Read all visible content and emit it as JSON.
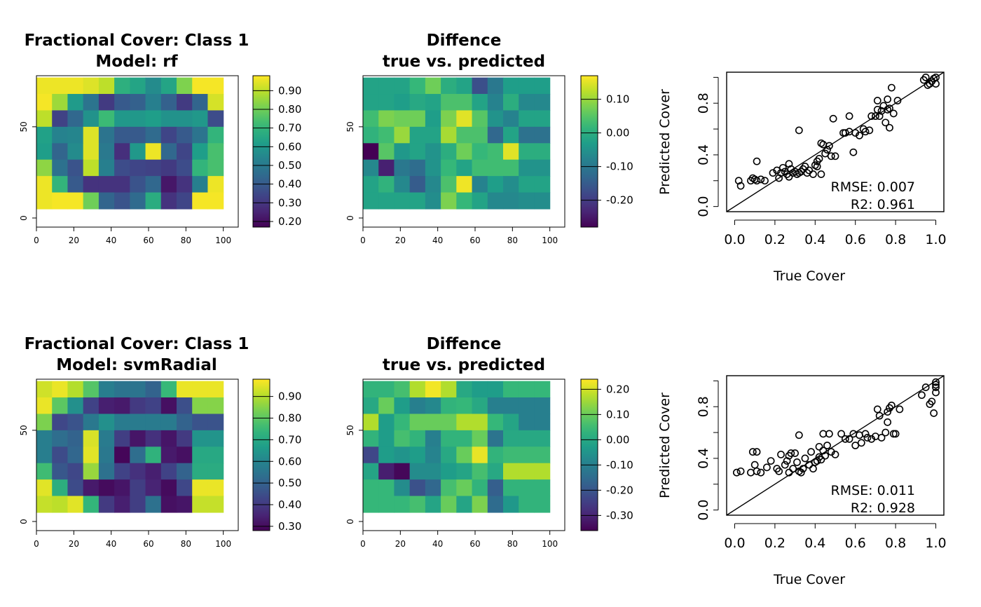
{
  "chart_data": [
    {
      "type": "heatmap",
      "title_lines": [
        "Fractional Cover: Class 1",
        "Model: rf"
      ],
      "x_ticks": [
        "0",
        "20",
        "40",
        "60",
        "80",
        "100"
      ],
      "y_ticks": [
        "0",
        "50"
      ],
      "xlim": [
        0,
        108
      ],
      "ylim": [
        -5,
        78
      ],
      "extent": [
        0,
        100,
        5,
        77
      ],
      "zlim": [
        0.17,
        0.98
      ],
      "colorbar_ticks": [
        0.2,
        0.3,
        0.4,
        0.5,
        0.6,
        0.7,
        0.8,
        0.9
      ],
      "colorbar_labels": [
        "0.20",
        "0.30",
        "0.40",
        "0.50",
        "0.60",
        "0.70",
        "0.80",
        "0.90"
      ],
      "grid": [
        [
          0.96,
          0.96,
          0.96,
          0.94,
          0.9,
          0.68,
          0.64,
          0.56,
          0.64,
          0.82,
          0.97,
          0.97
        ],
        [
          0.97,
          0.86,
          0.61,
          0.48,
          0.31,
          0.4,
          0.42,
          0.52,
          0.42,
          0.31,
          0.43,
          0.93
        ],
        [
          0.9,
          0.33,
          0.44,
          0.58,
          0.72,
          0.6,
          0.6,
          0.62,
          0.58,
          0.58,
          0.6,
          0.36
        ],
        [
          0.63,
          0.53,
          0.54,
          0.94,
          0.48,
          0.4,
          0.4,
          0.45,
          0.34,
          0.4,
          0.48,
          0.7
        ],
        [
          0.62,
          0.43,
          0.56,
          0.94,
          0.5,
          0.28,
          0.6,
          0.96,
          0.44,
          0.34,
          0.62,
          0.74
        ],
        [
          0.84,
          0.47,
          0.38,
          0.9,
          0.52,
          0.36,
          0.34,
          0.33,
          0.31,
          0.36,
          0.7,
          0.74
        ],
        [
          0.96,
          0.7,
          0.4,
          0.29,
          0.29,
          0.29,
          0.38,
          0.44,
          0.22,
          0.29,
          0.52,
          0.96
        ],
        [
          0.96,
          0.97,
          0.97,
          0.8,
          0.43,
          0.38,
          0.45,
          0.67,
          0.29,
          0.34,
          0.97,
          0.97
        ]
      ]
    },
    {
      "type": "heatmap",
      "title_lines": [
        "Diffence",
        "true vs. predicted"
      ],
      "x_ticks": [
        "0",
        "20",
        "40",
        "60",
        "80",
        "100"
      ],
      "y_ticks": [
        "0",
        "50"
      ],
      "xlim": [
        0,
        108
      ],
      "ylim": [
        -5,
        78
      ],
      "extent": [
        0,
        100,
        5,
        77
      ],
      "zlim": [
        -0.28,
        0.17
      ],
      "colorbar_ticks": [
        -0.2,
        -0.1,
        0.0,
        0.1
      ],
      "colorbar_labels": [
        "-0.20",
        "-0.10",
        "0.00",
        "0.10"
      ],
      "grid": [
        [
          -0.02,
          -0.02,
          -0.02,
          0.02,
          0.07,
          0.0,
          -0.02,
          -0.17,
          -0.1,
          -0.03,
          -0.03,
          -0.03
        ],
        [
          -0.02,
          -0.02,
          -0.03,
          -0.01,
          -0.02,
          0.04,
          0.04,
          -0.02,
          -0.08,
          0.0,
          -0.07,
          -0.07
        ],
        [
          0.03,
          0.08,
          0.07,
          0.07,
          -0.03,
          0.08,
          0.15,
          0.05,
          -0.05,
          -0.08,
          -0.02,
          -0.02
        ],
        [
          0.01,
          0.03,
          0.1,
          -0.02,
          -0.02,
          0.11,
          0.04,
          0.04,
          -0.13,
          -0.02,
          -0.11,
          -0.11
        ],
        [
          -0.28,
          0.05,
          -0.04,
          -0.02,
          -0.05,
          0.0,
          0.07,
          0.02,
          0.03,
          0.15,
          0.0,
          0.0
        ],
        [
          -0.07,
          -0.24,
          -0.1,
          -0.12,
          -0.05,
          0.02,
          -0.02,
          0.03,
          0.03,
          0.03,
          -0.05,
          -0.05
        ],
        [
          -0.02,
          0.01,
          -0.07,
          -0.15,
          -0.07,
          0.04,
          0.16,
          -0.08,
          -0.03,
          -0.06,
          -0.02,
          -0.02
        ],
        [
          -0.02,
          -0.02,
          -0.02,
          -0.02,
          -0.06,
          0.08,
          0.02,
          -0.02,
          -0.07,
          -0.07,
          -0.06,
          -0.06
        ]
      ]
    },
    {
      "type": "scatter",
      "xlabel": "True Cover",
      "ylabel": "Predicted Cover",
      "x_ticks": [
        "0.0",
        "0.2",
        "0.4",
        "0.6",
        "0.8",
        "1.0"
      ],
      "y_ticks": [
        "0.0",
        "0.4",
        "0.8"
      ],
      "xlim": [
        -0.04,
        1.04
      ],
      "ylim": [
        -0.04,
        1.04
      ],
      "reference_line": "y = x",
      "annotation_lines": [
        "RMSE: 0.007",
        "R2: 0.961"
      ],
      "points": [
        [
          0.02,
          0.2
        ],
        [
          0.03,
          0.16
        ],
        [
          0.08,
          0.2
        ],
        [
          0.09,
          0.22
        ],
        [
          0.1,
          0.21
        ],
        [
          0.11,
          0.2
        ],
        [
          0.11,
          0.35
        ],
        [
          0.13,
          0.21
        ],
        [
          0.15,
          0.2
        ],
        [
          0.19,
          0.26
        ],
        [
          0.21,
          0.28
        ],
        [
          0.22,
          0.22
        ],
        [
          0.23,
          0.26
        ],
        [
          0.24,
          0.3
        ],
        [
          0.25,
          0.27
        ],
        [
          0.26,
          0.25
        ],
        [
          0.27,
          0.23
        ],
        [
          0.27,
          0.33
        ],
        [
          0.28,
          0.29
        ],
        [
          0.29,
          0.26
        ],
        [
          0.3,
          0.27
        ],
        [
          0.31,
          0.25
        ],
        [
          0.32,
          0.59
        ],
        [
          0.32,
          0.26
        ],
        [
          0.33,
          0.27
        ],
        [
          0.34,
          0.29
        ],
        [
          0.35,
          0.31
        ],
        [
          0.36,
          0.26
        ],
        [
          0.37,
          0.28
        ],
        [
          0.39,
          0.25
        ],
        [
          0.4,
          0.32
        ],
        [
          0.41,
          0.31
        ],
        [
          0.41,
          0.35
        ],
        [
          0.42,
          0.37
        ],
        [
          0.43,
          0.25
        ],
        [
          0.43,
          0.49
        ],
        [
          0.44,
          0.48
        ],
        [
          0.45,
          0.41
        ],
        [
          0.46,
          0.44
        ],
        [
          0.47,
          0.47
        ],
        [
          0.48,
          0.39
        ],
        [
          0.49,
          0.68
        ],
        [
          0.5,
          0.39
        ],
        [
          0.54,
          0.57
        ],
        [
          0.55,
          0.57
        ],
        [
          0.57,
          0.7
        ],
        [
          0.57,
          0.58
        ],
        [
          0.59,
          0.42
        ],
        [
          0.6,
          0.57
        ],
        [
          0.62,
          0.55
        ],
        [
          0.64,
          0.6
        ],
        [
          0.65,
          0.58
        ],
        [
          0.67,
          0.59
        ],
        [
          0.68,
          0.7
        ],
        [
          0.7,
          0.7
        ],
        [
          0.71,
          0.75
        ],
        [
          0.71,
          0.82
        ],
        [
          0.72,
          0.7
        ],
        [
          0.73,
          0.74
        ],
        [
          0.74,
          0.78
        ],
        [
          0.75,
          0.65
        ],
        [
          0.76,
          0.75
        ],
        [
          0.76,
          0.83
        ],
        [
          0.77,
          0.61
        ],
        [
          0.77,
          0.76
        ],
        [
          0.78,
          0.92
        ],
        [
          0.79,
          0.72
        ],
        [
          0.81,
          0.82
        ],
        [
          0.94,
          0.98
        ],
        [
          0.95,
          1.0
        ],
        [
          0.96,
          0.94
        ],
        [
          0.97,
          0.95
        ],
        [
          0.98,
          0.97
        ],
        [
          0.99,
          0.99
        ],
        [
          1.0,
          1.0
        ],
        [
          1.0,
          0.95
        ]
      ]
    },
    {
      "type": "heatmap",
      "title_lines": [
        "Fractional Cover: Class 1",
        "Model: svmRadial"
      ],
      "x_ticks": [
        "0",
        "20",
        "40",
        "60",
        "80",
        "100"
      ],
      "y_ticks": [
        "0",
        "50"
      ],
      "xlim": [
        0,
        108
      ],
      "ylim": [
        -5,
        78
      ],
      "extent": [
        0,
        100,
        5,
        77
      ],
      "zlim": [
        0.28,
        0.98
      ],
      "colorbar_ticks": [
        0.3,
        0.4,
        0.5,
        0.6,
        0.7,
        0.8,
        0.9
      ],
      "colorbar_labels": [
        "0.30",
        "0.40",
        "0.50",
        "0.60",
        "0.70",
        "0.80",
        "0.90"
      ],
      "grid": [
        [
          0.93,
          0.96,
          0.9,
          0.79,
          0.58,
          0.55,
          0.55,
          0.5,
          0.75,
          0.96,
          0.96,
          0.96
        ],
        [
          0.96,
          0.8,
          0.63,
          0.42,
          0.34,
          0.33,
          0.4,
          0.42,
          0.31,
          0.45,
          0.85,
          0.85
        ],
        [
          0.84,
          0.43,
          0.46,
          0.56,
          0.63,
          0.57,
          0.57,
          0.57,
          0.57,
          0.5,
          0.46,
          0.46
        ],
        [
          0.58,
          0.53,
          0.5,
          0.94,
          0.57,
          0.41,
          0.32,
          0.38,
          0.32,
          0.4,
          0.64,
          0.64
        ],
        [
          0.58,
          0.44,
          0.51,
          0.95,
          0.56,
          0.29,
          0.53,
          0.73,
          0.33,
          0.31,
          0.7,
          0.7
        ],
        [
          0.76,
          0.47,
          0.43,
          0.87,
          0.54,
          0.42,
          0.38,
          0.34,
          0.42,
          0.5,
          0.71,
          0.71
        ],
        [
          0.95,
          0.72,
          0.44,
          0.33,
          0.3,
          0.32,
          0.41,
          0.35,
          0.3,
          0.43,
          0.96,
          0.96
        ],
        [
          0.92,
          0.91,
          0.95,
          0.74,
          0.4,
          0.34,
          0.41,
          0.54,
          0.31,
          0.32,
          0.92,
          0.92
        ]
      ]
    },
    {
      "type": "heatmap",
      "title_lines": [
        "Diffence",
        "true vs. predicted"
      ],
      "x_ticks": [
        "0",
        "20",
        "40",
        "60",
        "80",
        "100"
      ],
      "y_ticks": [
        "0",
        "50"
      ],
      "xlim": [
        0,
        108
      ],
      "ylim": [
        -5,
        78
      ],
      "extent": [
        0,
        100,
        5,
        77
      ],
      "zlim": [
        -0.36,
        0.24
      ],
      "colorbar_ticks": [
        -0.3,
        -0.2,
        -0.1,
        0.0,
        0.1,
        0.2
      ],
      "colorbar_labels": [
        "-0.30",
        "-0.20",
        "-0.10",
        "0.00",
        "0.10",
        "0.20"
      ],
      "grid": [
        [
          0.03,
          0.03,
          0.06,
          0.17,
          0.23,
          0.17,
          0.0,
          -0.03,
          -0.03,
          0.04,
          0.04,
          0.04
        ],
        [
          0.0,
          0.1,
          -0.03,
          -0.1,
          -0.08,
          0.03,
          0.04,
          0.0,
          -0.1,
          -0.1,
          -0.1,
          -0.1
        ],
        [
          0.17,
          -0.03,
          0.04,
          0.1,
          0.1,
          0.1,
          0.17,
          0.17,
          0.04,
          -0.01,
          -0.1,
          -0.1
        ],
        [
          0.03,
          -0.03,
          0.06,
          0.03,
          -0.1,
          0.03,
          0.03,
          0.1,
          -0.13,
          0.0,
          0.0,
          0.0
        ],
        [
          -0.23,
          -0.03,
          -0.05,
          -0.03,
          -0.09,
          0.0,
          0.1,
          0.22,
          0.03,
          0.05,
          0.05,
          0.05
        ],
        [
          -0.01,
          -0.31,
          -0.35,
          -0.07,
          -0.07,
          -0.03,
          -0.01,
          0.06,
          0.0,
          0.17,
          0.17,
          0.17
        ],
        [
          0.04,
          0.04,
          -0.07,
          -0.21,
          -0.16,
          0.06,
          0.1,
          0.03,
          -0.18,
          0.03,
          0.03,
          0.03
        ],
        [
          0.04,
          0.04,
          0.04,
          0.06,
          -0.01,
          0.1,
          -0.01,
          0.12,
          -0.15,
          -0.04,
          0.03,
          0.03
        ]
      ]
    },
    {
      "type": "scatter",
      "xlabel": "True Cover",
      "ylabel": "Predicted Cover",
      "x_ticks": [
        "0.0",
        "0.2",
        "0.4",
        "0.6",
        "0.8",
        "1.0"
      ],
      "y_ticks": [
        "0.0",
        "0.4",
        "0.8"
      ],
      "xlim": [
        -0.04,
        1.04
      ],
      "ylim": [
        -0.04,
        1.04
      ],
      "reference_line": "y = x",
      "annotation_lines": [
        "RMSE: 0.011",
        "R2: 0.928"
      ],
      "points": [
        [
          0.01,
          0.29
        ],
        [
          0.03,
          0.3
        ],
        [
          0.08,
          0.29
        ],
        [
          0.09,
          0.45
        ],
        [
          0.1,
          0.35
        ],
        [
          0.11,
          0.3
        ],
        [
          0.11,
          0.45
        ],
        [
          0.13,
          0.29
        ],
        [
          0.16,
          0.33
        ],
        [
          0.18,
          0.38
        ],
        [
          0.21,
          0.32
        ],
        [
          0.22,
          0.3
        ],
        [
          0.23,
          0.43
        ],
        [
          0.25,
          0.35
        ],
        [
          0.26,
          0.38
        ],
        [
          0.27,
          0.42
        ],
        [
          0.27,
          0.29
        ],
        [
          0.28,
          0.44
        ],
        [
          0.29,
          0.32
        ],
        [
          0.3,
          0.44
        ],
        [
          0.31,
          0.37
        ],
        [
          0.32,
          0.58
        ],
        [
          0.32,
          0.3
        ],
        [
          0.33,
          0.29
        ],
        [
          0.34,
          0.32
        ],
        [
          0.35,
          0.4
        ],
        [
          0.37,
          0.35
        ],
        [
          0.38,
          0.45
        ],
        [
          0.39,
          0.32
        ],
        [
          0.4,
          0.37
        ],
        [
          0.41,
          0.38
        ],
        [
          0.42,
          0.49
        ],
        [
          0.42,
          0.41
        ],
        [
          0.43,
          0.39
        ],
        [
          0.44,
          0.59
        ],
        [
          0.44,
          0.46
        ],
        [
          0.45,
          0.42
        ],
        [
          0.46,
          0.5
        ],
        [
          0.47,
          0.59
        ],
        [
          0.48,
          0.45
        ],
        [
          0.5,
          0.43
        ],
        [
          0.53,
          0.59
        ],
        [
          0.55,
          0.55
        ],
        [
          0.57,
          0.55
        ],
        [
          0.59,
          0.59
        ],
        [
          0.6,
          0.5
        ],
        [
          0.62,
          0.58
        ],
        [
          0.63,
          0.52
        ],
        [
          0.65,
          0.59
        ],
        [
          0.66,
          0.56
        ],
        [
          0.68,
          0.55
        ],
        [
          0.7,
          0.57
        ],
        [
          0.71,
          0.78
        ],
        [
          0.72,
          0.73
        ],
        [
          0.73,
          0.56
        ],
        [
          0.75,
          0.6
        ],
        [
          0.76,
          0.76
        ],
        [
          0.76,
          0.68
        ],
        [
          0.77,
          0.79
        ],
        [
          0.78,
          0.81
        ],
        [
          0.79,
          0.59
        ],
        [
          0.8,
          0.59
        ],
        [
          0.82,
          0.78
        ],
        [
          0.93,
          0.89
        ],
        [
          0.95,
          0.95
        ],
        [
          0.97,
          0.82
        ],
        [
          0.98,
          0.84
        ],
        [
          0.99,
          0.75
        ],
        [
          1.0,
          0.97
        ],
        [
          1.0,
          0.91
        ],
        [
          1.0,
          0.95
        ],
        [
          1.0,
          0.99
        ]
      ]
    }
  ]
}
